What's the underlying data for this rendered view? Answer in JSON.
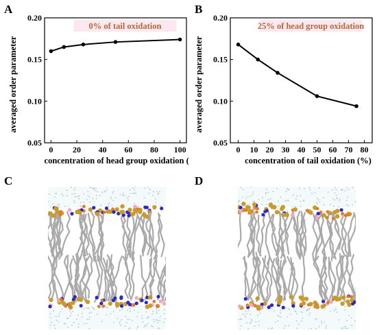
{
  "panels": {
    "a": "A",
    "b": "B",
    "c": "C",
    "d": "D"
  },
  "colors": {
    "line": "#000000",
    "title_text": "#b06a3a",
    "title_bg": "#fde8f0",
    "water": "#a6c9d2",
    "lipid_tail": "#a9a9a9",
    "head_gold": "#c99a2e",
    "head_orange": "#e07b2a",
    "head_blue": "#2a2ac8",
    "head_pink": "#f2a7c7"
  },
  "chart_data": [
    {
      "type": "line",
      "title": "0% of tail oxidation",
      "xlabel": "concentration of head group oxidation (%)",
      "ylabel": "averaged order parameter",
      "xlim": [
        -5,
        105
      ],
      "ylim": [
        0.05,
        0.2
      ],
      "xticks": [
        "0",
        "20",
        "40",
        "60",
        "80",
        "100"
      ],
      "yticks": [
        "0.05",
        "0.10",
        "0.15",
        "0.20"
      ],
      "x": [
        0,
        10,
        25,
        50,
        100
      ],
      "y": [
        0.16,
        0.165,
        0.168,
        0.171,
        0.174
      ],
      "legend": "top-center",
      "grid": false
    },
    {
      "type": "line",
      "title": "25% of head group oxidation",
      "xlabel": "concentration of tail oxidation (%)",
      "ylabel": "averaged order parameter",
      "xlim": [
        -5,
        85
      ],
      "ylim": [
        0.05,
        0.2
      ],
      "xticks": [
        "0",
        "10",
        "20",
        "30",
        "40",
        "50",
        "60",
        "70",
        "80"
      ],
      "yticks": [
        "0.05",
        "0.10",
        "0.15",
        "0.20"
      ],
      "x": [
        0,
        12.5,
        25,
        50,
        75
      ],
      "y": [
        0.168,
        0.15,
        0.134,
        0.106,
        0.094
      ],
      "legend": "top-center",
      "grid": false
    }
  ]
}
